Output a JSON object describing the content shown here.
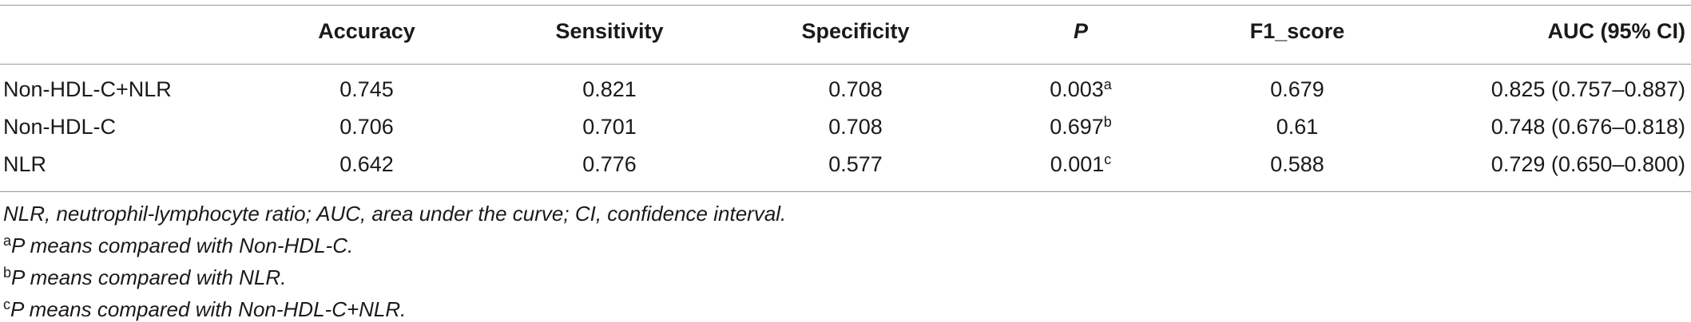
{
  "table": {
    "header": [
      "",
      "Accuracy",
      "Sensitivity",
      "Specificity",
      "P",
      "F1_score",
      "AUC (95% CI)"
    ],
    "rows": [
      [
        {
          "text": "Non-HDL-C+NLR"
        },
        {
          "text": "0.745"
        },
        {
          "text": "0.821"
        },
        {
          "text": "0.708"
        },
        {
          "text": "0.003",
          "sup": "a"
        },
        {
          "text": "0.679"
        },
        {
          "text": "0.825 (0.757–0.887)"
        }
      ],
      [
        {
          "text": "Non-HDL-C"
        },
        {
          "text": "0.706"
        },
        {
          "text": "0.701"
        },
        {
          "text": "0.708"
        },
        {
          "text": "0.697",
          "sup": "b"
        },
        {
          "text": "0.61"
        },
        {
          "text": "0.748 (0.676–0.818)"
        }
      ],
      [
        {
          "text": "NLR"
        },
        {
          "text": "0.642"
        },
        {
          "text": "0.776"
        },
        {
          "text": "0.577"
        },
        {
          "text": "0.001",
          "sup": "c"
        },
        {
          "text": "0.588"
        },
        {
          "text": "0.729 (0.650–0.800)"
        }
      ]
    ]
  },
  "footnotes": [
    {
      "text": "NLR, neutrophil-lymphocyte ratio; AUC, area under the curve; CI, confidence interval."
    },
    {
      "sup": "a",
      "text": "P means compared with Non-HDL-C."
    },
    {
      "sup": "b",
      "text": "P means compared with NLR."
    },
    {
      "sup": "c",
      "text": "P means compared with Non-HDL-C+NLR."
    }
  ]
}
